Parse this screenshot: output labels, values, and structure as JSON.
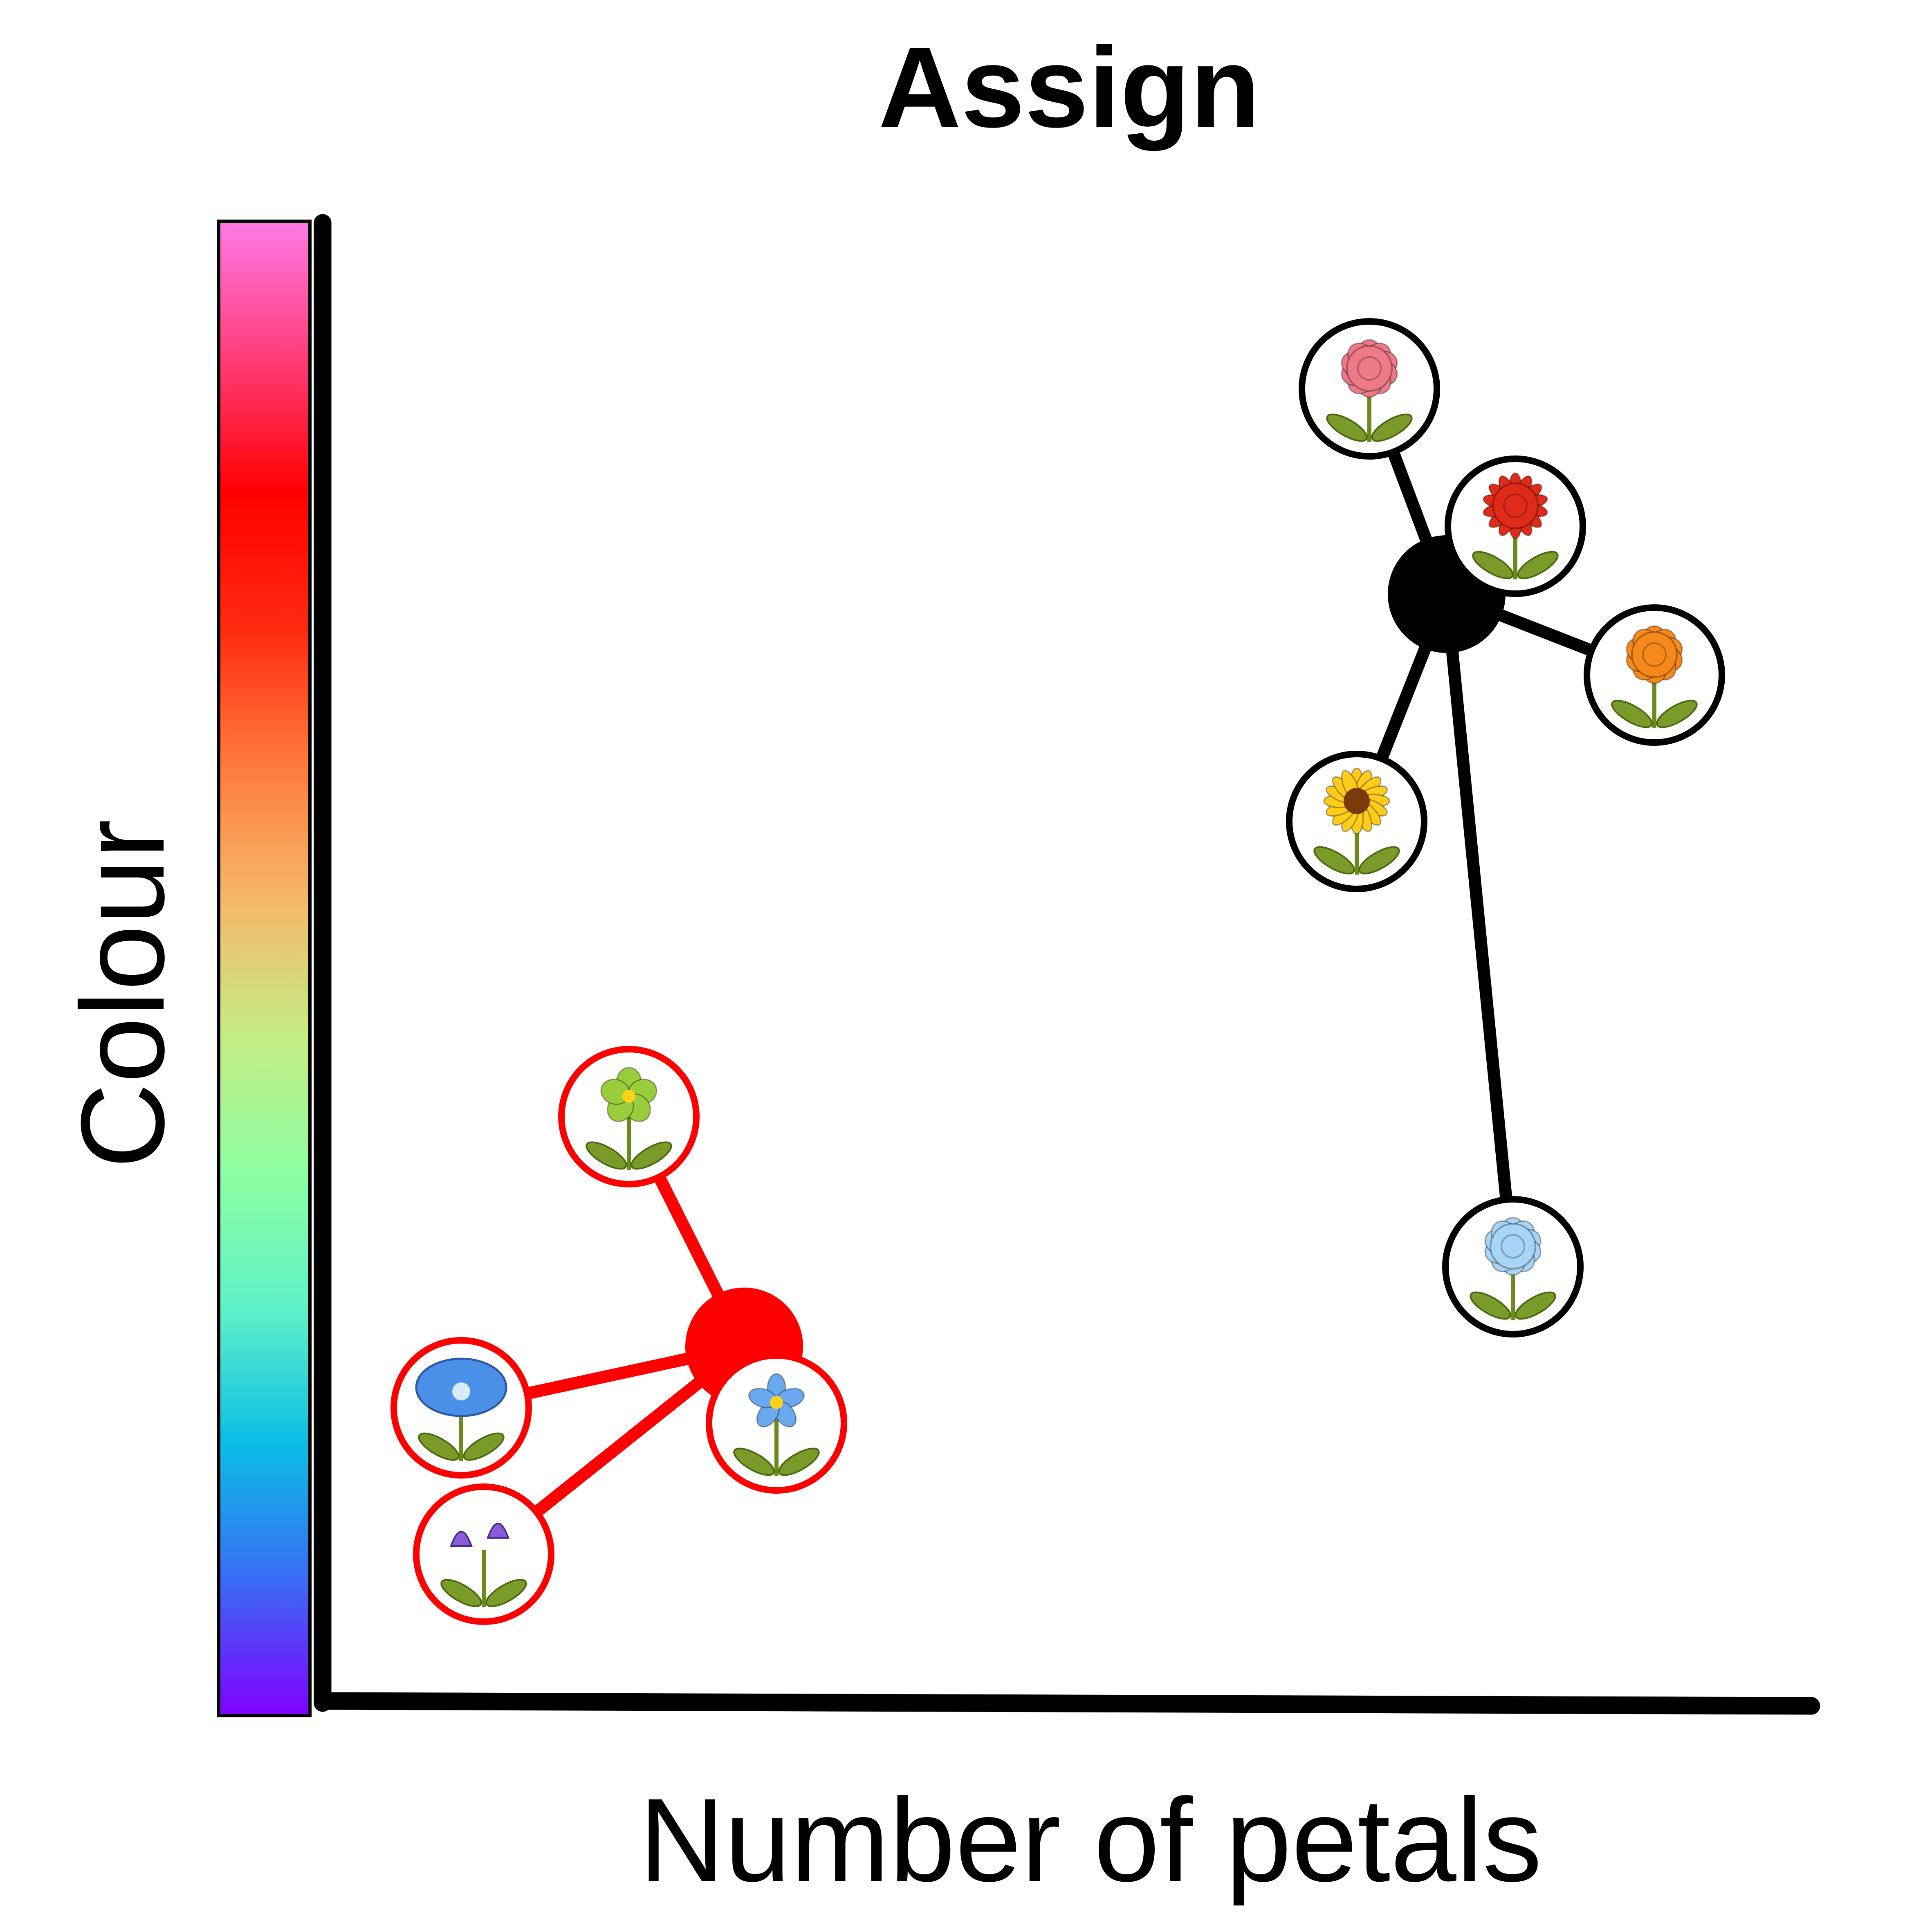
{
  "title": "Assign",
  "xlabel": "Number of petals",
  "ylabel": "Colour",
  "colorbar": {
    "stops": [
      "#7f00ff",
      "#3a6cf4",
      "#0bbde6",
      "#5ff1c8",
      "#8efea0",
      "#c4ec84",
      "#f6b86a",
      "#ff7a3c",
      "#ff2a10",
      "#ff0000",
      "#ff3d7a",
      "#ff7ae6"
    ]
  },
  "chart_data": {
    "type": "scatter",
    "title": "Assign",
    "xlabel": "Number of petals",
    "ylabel": "Colour",
    "clusters": [
      {
        "name": "cluster-red",
        "color": "#ff0000",
        "members": [
          {
            "name": "green-flower",
            "petal": "#9acd3c",
            "shape": "round"
          },
          {
            "name": "blue-morning-glory",
            "petal": "#4a90e8",
            "shape": "cup"
          },
          {
            "name": "blue-star-flower",
            "petal": "#6aa8f0",
            "shape": "star"
          },
          {
            "name": "purple-bellflower",
            "petal": "#8a5cd6",
            "shape": "bell"
          }
        ]
      },
      {
        "name": "cluster-black",
        "color": "#000000",
        "members": [
          {
            "name": "pink-carnation",
            "petal": "#ee7a88",
            "shape": "ruffle"
          },
          {
            "name": "red-dahlia",
            "petal": "#e02a1a",
            "shape": "spiky"
          },
          {
            "name": "orange-marigold",
            "petal": "#f7891c",
            "shape": "ruffle"
          },
          {
            "name": "sunflower",
            "petal": "#ffcc1a",
            "shape": "sun"
          },
          {
            "name": "light-blue-rose",
            "petal": "#a8d4f5",
            "shape": "ruffle"
          }
        ]
      }
    ]
  }
}
